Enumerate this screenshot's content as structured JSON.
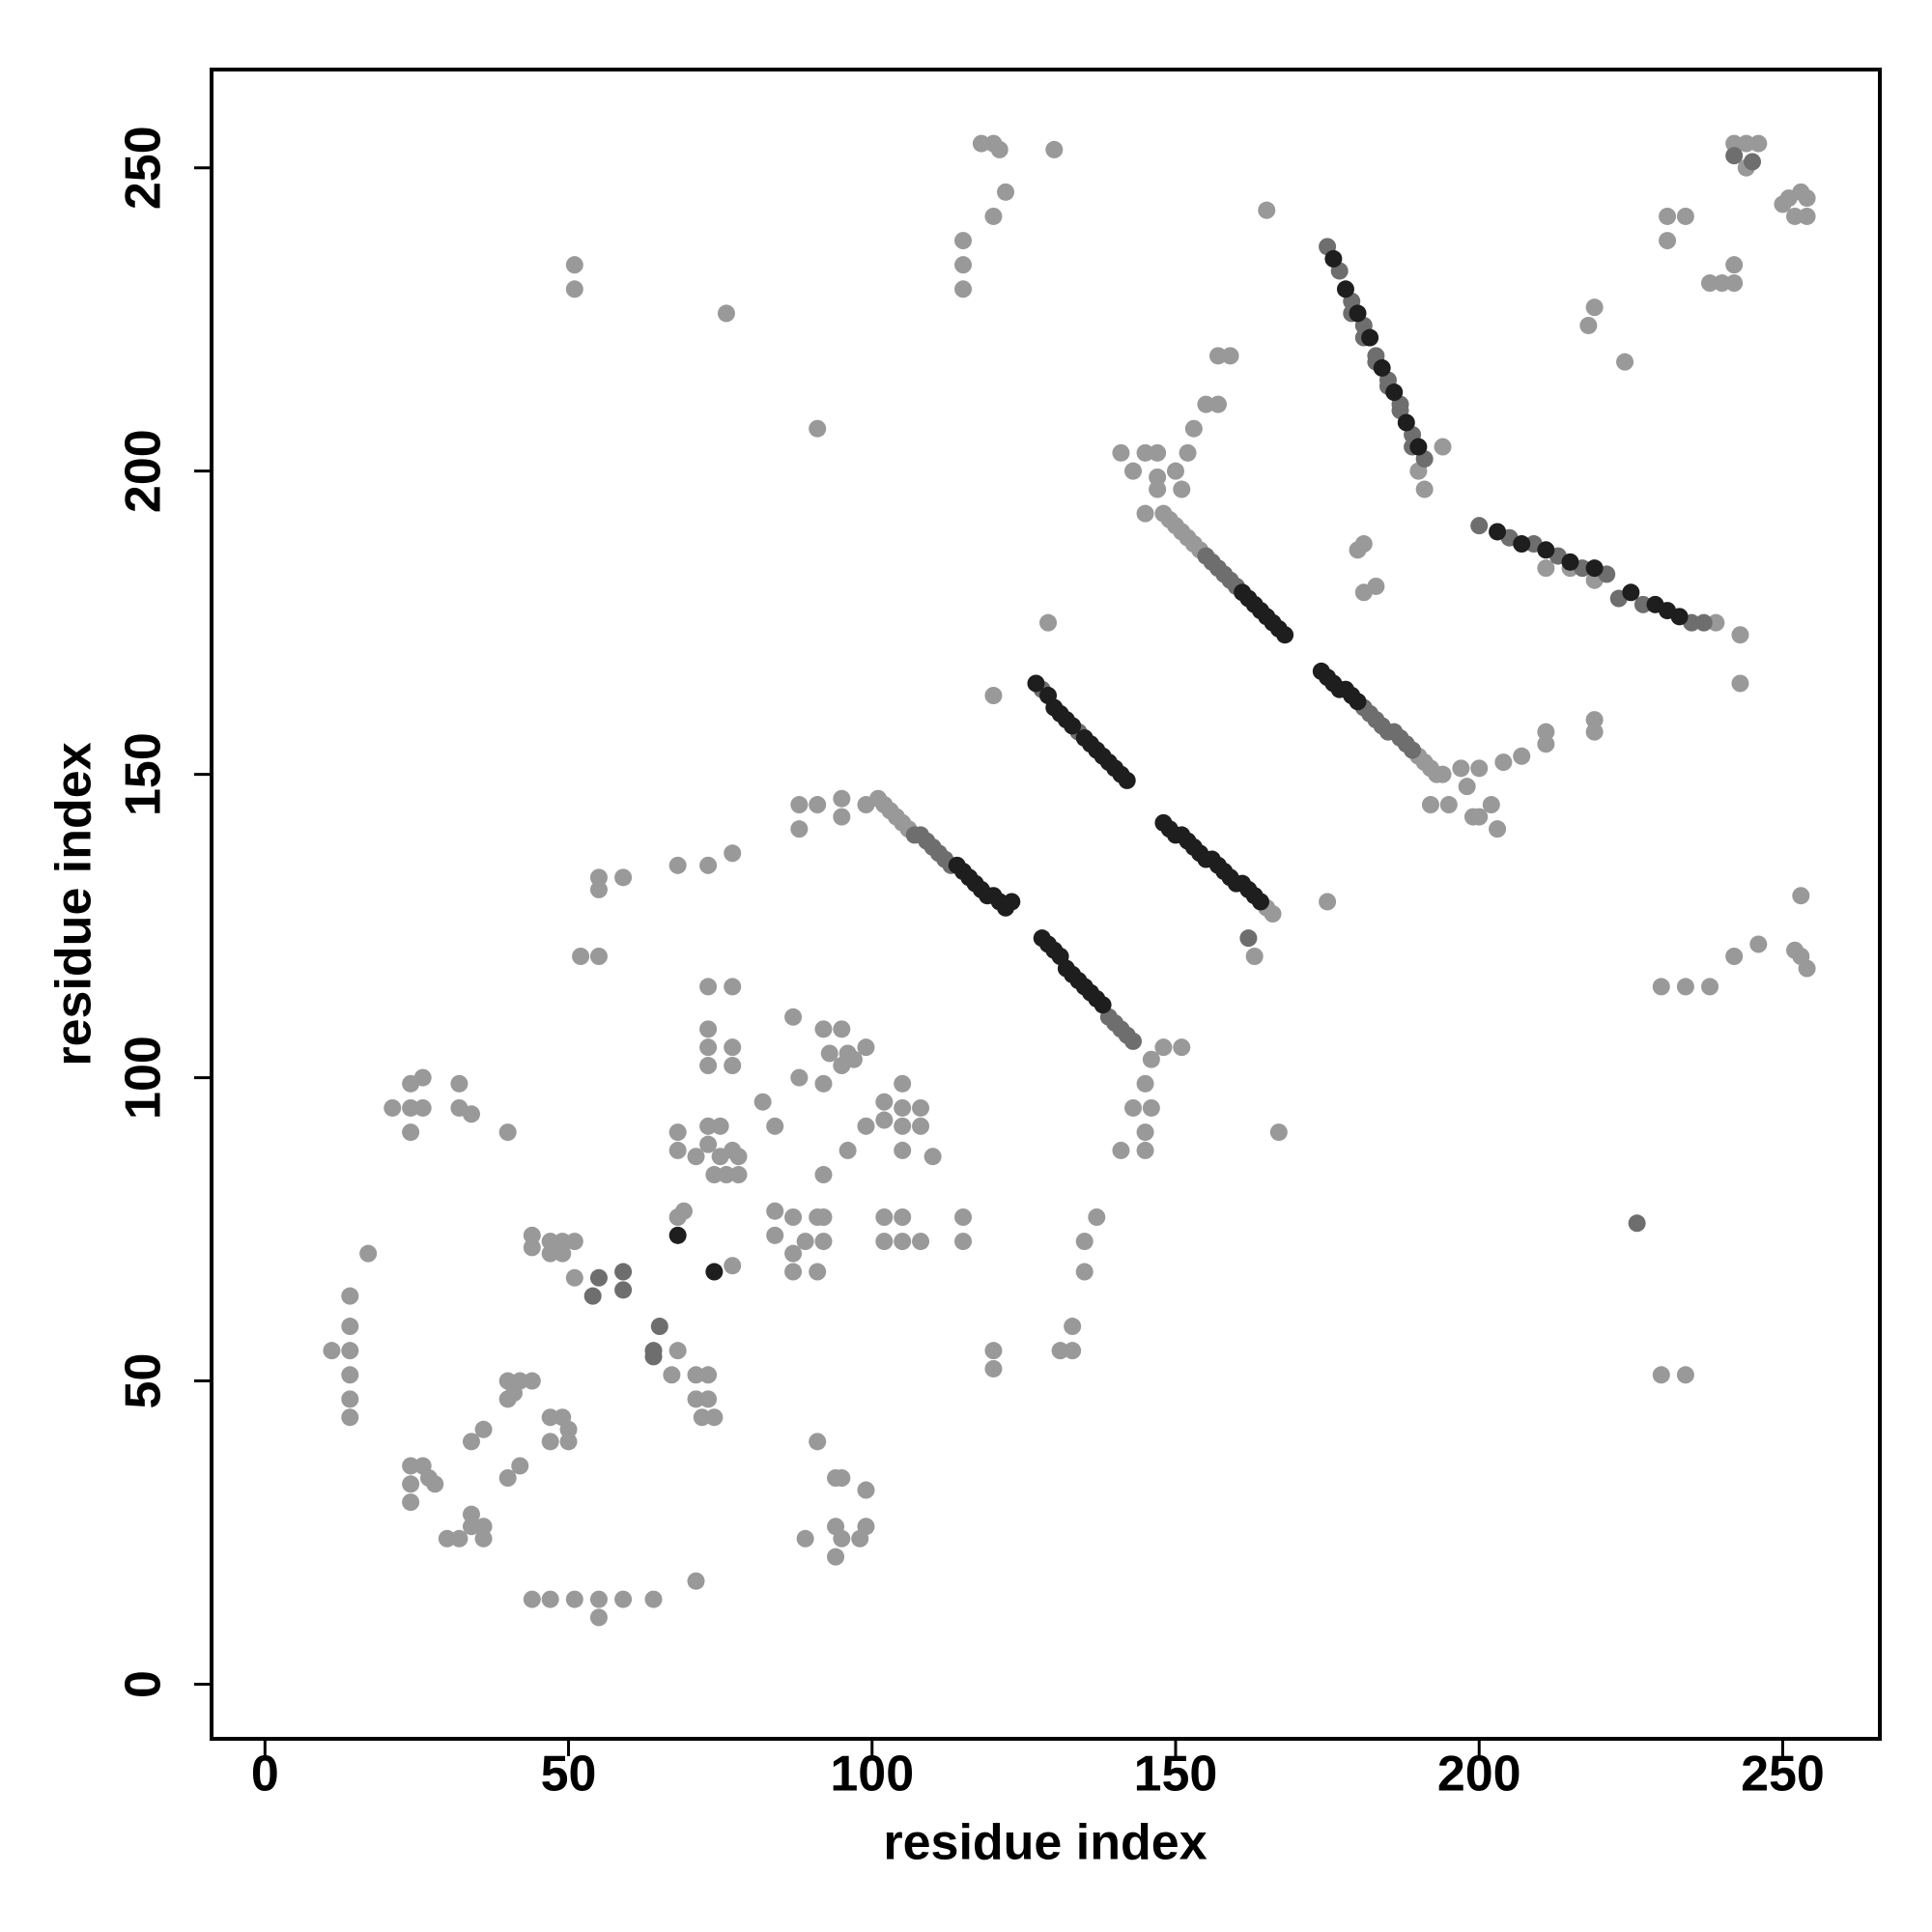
{
  "chart_data": {
    "type": "scatter",
    "xlabel": "residue index",
    "ylabel": "residue index",
    "xlim": [
      -8.8,
      266
    ],
    "ylim": [
      -9,
      266.2
    ],
    "xticks": [
      0,
      50,
      100,
      150,
      200,
      250
    ],
    "yticks": [
      0,
      50,
      100,
      150,
      200,
      250
    ],
    "grid": false,
    "series": [
      {
        "color": "#999999",
        "x": [
          11,
          14,
          14,
          14,
          14,
          14,
          14,
          17,
          21,
          24,
          26,
          24,
          26,
          24,
          32,
          32,
          34,
          40,
          24,
          24,
          24,
          26,
          27,
          28,
          30,
          32,
          34,
          36,
          34,
          36,
          34,
          36,
          40,
          42,
          40,
          42,
          44,
          40,
          41,
          44,
          44,
          47,
          49,
          51,
          47,
          49,
          51,
          47,
          49,
          50,
          47,
          50,
          51,
          51,
          52,
          55,
          55,
          55,
          59,
          44,
          47,
          51,
          55,
          59,
          64,
          55,
          71,
          68,
          73,
          77,
          76,
          73,
          77,
          73,
          73,
          73,
          77,
          77,
          68,
          68,
          71,
          73,
          75,
          73,
          75,
          77,
          78,
          78,
          74,
          76,
          77,
          68,
          69,
          68,
          67,
          71,
          73,
          71,
          73,
          72,
          74,
          84,
          82,
          84,
          84,
          87,
          87,
          87,
          91,
          91,
          92,
          89,
          92,
          87,
          88,
          92,
          95,
          93,
          96,
          95,
          97,
          99,
          92,
          99,
          96,
          92,
          88,
          91,
          88,
          95,
          95,
          99,
          91,
          91,
          89,
          94,
          95,
          99,
          94,
          95,
          99,
          98,
          94,
          102,
          102,
          105,
          105,
          105,
          108,
          108,
          105,
          110,
          102,
          105,
          102,
          105,
          108,
          115,
          115,
          120,
          120,
          131,
          133,
          133,
          135,
          135,
          137,
          141,
          145,
          145,
          143,
          146,
          145,
          146,
          148,
          151,
          115,
          115,
          115,
          118,
          120,
          121,
          120,
          122,
          130,
          129,
          120,
          165,
          175,
          163,
          180,
          181,
          181,
          183,
          167,
          230,
          234,
          230,
          234,
          238,
          242,
          246,
          253,
          252,
          253,
          254,
          243,
          219,
          219,
          211,
          211,
          207,
          204,
          218,
          219,
          224,
          231,
          231,
          234,
          238,
          240,
          242,
          242,
          242,
          244,
          246,
          244,
          251,
          253,
          254,
          252,
          254,
          250,
          141,
          145,
          147,
          143,
          147,
          145,
          147,
          151,
          150,
          152,
          153,
          155,
          157,
          157,
          159,
          192,
          195,
          198,
          200,
          202,
          200,
          203,
          199,
          197,
          190,
          194,
          191,
          101,
          102,
          103,
          104,
          105,
          106,
          148,
          149,
          150,
          151,
          152,
          153,
          154,
          190,
          191,
          192,
          193,
          194,
          239,
          243,
          211,
          215,
          219,
          165,
          166
        ],
        "y": [
          55,
          64,
          59,
          55,
          51,
          47,
          44,
          71,
          95,
          99,
          100,
          95,
          95,
          91,
          99,
          95,
          94,
          91,
          36,
          33,
          30,
          36,
          34,
          33,
          24,
          24,
          26,
          24,
          28,
          26,
          40,
          42,
          34,
          36,
          50,
          50,
          50,
          47,
          48,
          74,
          72,
          73,
          73,
          73,
          71,
          71,
          67,
          44,
          44,
          42,
          40,
          40,
          234,
          230,
          120,
          120,
          133,
          131,
          133,
          14,
          14,
          14,
          14,
          14,
          14,
          11,
          17,
          135,
          135,
          137,
          226,
          115,
          115,
          108,
          105,
          102,
          105,
          102,
          91,
          88,
          87,
          92,
          92,
          89,
          87,
          88,
          87,
          84,
          84,
          84,
          69,
          77,
          78,
          55,
          51,
          51,
          51,
          47,
          47,
          44,
          44,
          92,
          96,
          78,
          74,
          77,
          71,
          68,
          77,
          68,
          73,
          73,
          77,
          110,
          100,
          108,
          108,
          104,
          104,
          102,
          103,
          105,
          99,
          92,
          88,
          84,
          145,
          145,
          141,
          146,
          143,
          145,
          207,
          40,
          24,
          34,
          34,
          32,
          21,
          24,
          26,
          24,
          26,
          96,
          93,
          99,
          95,
          92,
          95,
          92,
          88,
          87,
          77,
          77,
          73,
          73,
          73,
          77,
          73,
          55,
          52,
          55,
          55,
          59,
          68,
          73,
          77,
          88,
          88,
          91,
          95,
          95,
          99,
          103,
          105,
          105,
          238,
          234,
          230,
          254,
          254,
          253,
          242,
          246,
          253,
          175,
          163,
          243,
          129,
          120,
          187,
          188,
          180,
          181,
          91,
          51,
          51,
          115,
          115,
          115,
          120,
          122,
          130,
          121,
          120,
          118,
          165,
          159,
          157,
          155,
          157,
          153,
          152,
          224,
          227,
          218,
          242,
          238,
          242,
          231,
          231,
          234,
          231,
          254,
          254,
          254,
          250,
          245,
          246,
          245,
          242,
          242,
          244,
          203,
          203,
          203,
          200,
          199,
          193,
          197,
          197,
          200,
          203,
          207,
          211,
          211,
          219,
          219,
          145,
          145,
          148,
          151,
          145,
          143,
          141,
          143,
          151,
          200,
          204,
          197,
          146,
          145,
          144,
          143,
          142,
          141,
          193,
          192,
          191,
          190,
          189,
          188,
          187,
          153,
          152,
          151,
          150,
          150,
          175,
          173,
          184,
          184,
          182,
          128,
          127
        ]
      },
      {
        "color": "#6e6e6e",
        "x": [
          55,
          54,
          59,
          59,
          65,
          64,
          64,
          226,
          162,
          245,
          242,
          107,
          108,
          109,
          110,
          111,
          112,
          113,
          128,
          134,
          139,
          140,
          141,
          142,
          143,
          155,
          156,
          157,
          158,
          159,
          160,
          181,
          182,
          183,
          184,
          185,
          186,
          187,
          188,
          189,
          175,
          177,
          179,
          181,
          183,
          185,
          187,
          189,
          191,
          179,
          181,
          183,
          185,
          187,
          189,
          200,
          205,
          209,
          213,
          217,
          221,
          223,
          227,
          235,
          237
        ],
        "y": [
          67,
          64,
          68,
          65,
          59,
          55,
          54,
          76,
          123,
          251,
          252,
          140,
          140,
          139,
          138,
          137,
          136,
          135,
          164,
          157,
          110,
          109,
          108,
          107,
          106,
          186,
          185,
          184,
          183,
          182,
          181,
          161,
          160,
          159,
          158,
          157,
          157,
          156,
          155,
          154,
          237,
          233,
          228,
          224,
          219,
          215,
          211,
          206,
          202,
          226,
          222,
          218,
          214,
          210,
          204,
          191,
          189,
          188,
          186,
          184,
          183,
          179,
          178,
          175,
          175
        ]
      },
      {
        "color": "#1e1e1e",
        "x": [
          68,
          74,
          114,
          115,
          116,
          117,
          118,
          119,
          120,
          121,
          122,
          123,
          127,
          129,
          130,
          131,
          132,
          133,
          135,
          136,
          137,
          138,
          139,
          140,
          141,
          142,
          128,
          129,
          130,
          131,
          132,
          133,
          134,
          135,
          136,
          137,
          138,
          148,
          149,
          150,
          151,
          152,
          153,
          154,
          155,
          156,
          157,
          158,
          159,
          160,
          161,
          162,
          163,
          164,
          161,
          162,
          163,
          164,
          165,
          166,
          167,
          168,
          174,
          175,
          176,
          177,
          178,
          179,
          180,
          176,
          178,
          180,
          182,
          184,
          186,
          188,
          190,
          203,
          207,
          211,
          215,
          219,
          225,
          229,
          231,
          233
        ],
        "y": [
          74,
          68,
          135,
          134,
          133,
          132,
          131,
          130,
          130,
          129,
          128,
          129,
          165,
          163,
          161,
          160,
          159,
          158,
          156,
          155,
          154,
          153,
          152,
          151,
          150,
          149,
          123,
          122,
          121,
          120,
          118,
          117,
          116,
          115,
          114,
          113,
          112,
          142,
          141,
          140,
          140,
          139,
          138,
          137,
          136,
          136,
          135,
          134,
          133,
          132,
          132,
          131,
          130,
          129,
          180,
          179,
          178,
          177,
          176,
          175,
          174,
          173,
          167,
          166,
          165,
          164,
          164,
          163,
          162,
          235,
          230,
          226,
          222,
          217,
          213,
          208,
          204,
          190,
          188,
          187,
          185,
          184,
          180,
          178,
          177,
          176
        ]
      }
    ]
  }
}
